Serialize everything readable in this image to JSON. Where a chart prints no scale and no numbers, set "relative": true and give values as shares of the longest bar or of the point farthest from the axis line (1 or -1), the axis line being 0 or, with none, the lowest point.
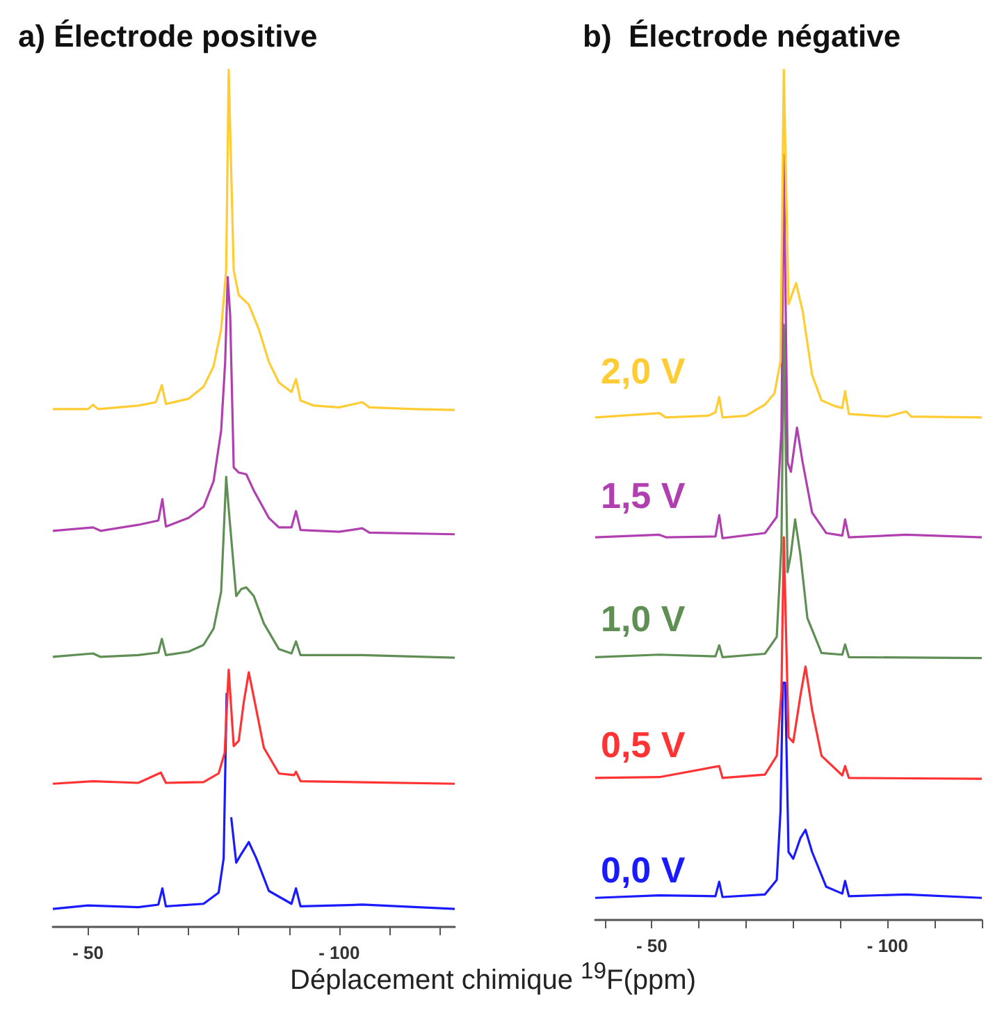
{
  "chart_data": [
    {
      "type": "line",
      "title": "a) Électrode positive",
      "xlabel": "Déplacement chimique $^{19}$F(ppm)",
      "relative": true,
      "tick_labels": "x",
      "xlim": [
        -43,
        -123
      ],
      "xticks": [
        {
          "value": -50,
          "label": "- 50"
        },
        {
          "value": -60,
          "label": null
        },
        {
          "value": -70,
          "label": null
        },
        {
          "value": -80,
          "label": null
        },
        {
          "value": -90,
          "label": null
        },
        {
          "value": -100,
          "label": "- 100"
        },
        {
          "value": -110,
          "label": null
        },
        {
          "value": -120,
          "label": null
        }
      ],
      "series": [
        {
          "name": "2,0 V",
          "color": "#ffcc33",
          "x": [
            -43,
            -50,
            -51,
            -52,
            -60,
            -63.5,
            -64.7,
            -65.5,
            -70,
            -73,
            -75,
            -76.5,
            -77.5,
            -78,
            -79,
            -80,
            -82,
            -84,
            -86,
            -88,
            -90.5,
            -91.4,
            -92.3,
            -95,
            -100,
            -104.6,
            -106,
            -115,
            -123
          ],
          "values": [
            0.604,
            0.604,
            0.609,
            0.604,
            0.608,
            0.612,
            0.632,
            0.61,
            0.616,
            0.63,
            0.654,
            0.697,
            0.766,
            1,
            0.766,
            0.737,
            0.726,
            0.697,
            0.659,
            0.635,
            0.624,
            0.639,
            0.614,
            0.608,
            0.606,
            0.612,
            0.606,
            0.604,
            0.603
          ]
        },
        {
          "name": "1,5 V",
          "color": "#b040b0",
          "x": [
            -43,
            -51,
            -52.5,
            -60,
            -64,
            -64.8,
            -65.5,
            -70,
            -73,
            -75,
            -76.5,
            -77.3,
            -77.8,
            -78.3,
            -79,
            -80,
            -81.5,
            -83,
            -86,
            -88,
            -90.5,
            -91.4,
            -92.3,
            -100,
            -104.6,
            -106,
            -123
          ],
          "values": [
            0.462,
            0.466,
            0.462,
            0.469,
            0.474,
            0.499,
            0.467,
            0.477,
            0.49,
            0.52,
            0.579,
            0.659,
            0.758,
            0.713,
            0.536,
            0.53,
            0.528,
            0.509,
            0.477,
            0.466,
            0.466,
            0.485,
            0.463,
            0.461,
            0.465,
            0.46,
            0.458
          ]
        },
        {
          "name": "1,0 V",
          "color": "#5f8f55",
          "x": [
            -43,
            -51,
            -52.5,
            -60,
            -64,
            -64.7,
            -65.5,
            -70,
            -73,
            -75,
            -76.5,
            -77.5,
            -78,
            -79.5,
            -80.5,
            -81.5,
            -83,
            -85,
            -88,
            -90.5,
            -91.4,
            -92.3,
            -104.6,
            -123
          ],
          "values": [
            0.315,
            0.319,
            0.315,
            0.317,
            0.32,
            0.336,
            0.317,
            0.321,
            0.329,
            0.348,
            0.391,
            0.525,
            0.488,
            0.386,
            0.394,
            0.396,
            0.386,
            0.354,
            0.324,
            0.319,
            0.333,
            0.317,
            0.317,
            0.314
          ]
        },
        {
          "name": "0,5 V",
          "color": "#ff3333",
          "x": [
            -43,
            -51,
            -60,
            -64.5,
            -65.5,
            -73,
            -76,
            -77.2,
            -78,
            -79,
            -80,
            -81,
            -82,
            -83,
            -85,
            -88,
            -91,
            -91.4,
            -92.3,
            -123
          ],
          "values": [
            0.167,
            0.17,
            0.168,
            0.18,
            0.168,
            0.169,
            0.179,
            0.203,
            0.3,
            0.211,
            0.217,
            0.262,
            0.297,
            0.268,
            0.209,
            0.179,
            0.177,
            0.181,
            0.17,
            0.167
          ]
        },
        {
          "name": "0,0 V",
          "color": "#1a1aff",
          "x": [
            -43,
            -50,
            -60,
            -64,
            -64.8,
            -65.5,
            -73,
            -76,
            -77,
            -77.6,
            -78,
            -78.5,
            -79.5,
            -80.5,
            -82,
            -83.5,
            -86,
            -90.5,
            -91.4,
            -92.3,
            -104.6,
            -123
          ],
          "values": [
            0.021,
            0.025,
            0.023,
            0.026,
            0.045,
            0.024,
            0.027,
            0.04,
            0.08,
            0.273,
            null,
            0.128,
            0.075,
            0.085,
            0.099,
            0.08,
            0.042,
            0.027,
            0.045,
            0.024,
            0.026,
            0.021
          ]
        }
      ]
    },
    {
      "type": "line",
      "title": "b)  Électrode négative",
      "relative": true,
      "tick_labels": "x",
      "xlim": [
        -38,
        -120
      ],
      "xticks": [
        {
          "value": -40,
          "label": null
        },
        {
          "value": -50,
          "label": "- 50"
        },
        {
          "value": -60,
          "label": null
        },
        {
          "value": -70,
          "label": null
        },
        {
          "value": -80,
          "label": null
        },
        {
          "value": -90,
          "label": null
        },
        {
          "value": -100,
          "label": "- 100"
        },
        {
          "value": -110,
          "label": null
        },
        {
          "value": -120,
          "label": null
        }
      ],
      "series": [
        {
          "color": "#ffcc33",
          "x": [
            -38,
            -51.6,
            -53,
            -62,
            -63.5,
            -64.3,
            -65,
            -70,
            -74,
            -76,
            -77.3,
            -78,
            -79,
            -80.6,
            -82,
            -84,
            -86,
            -89,
            -90.4,
            -91,
            -91.8,
            -100,
            -104,
            -105,
            -120
          ],
          "values": [
            0.591,
            0.596,
            0.591,
            0.593,
            0.597,
            0.615,
            0.591,
            0.593,
            0.606,
            0.619,
            0.657,
            1,
            0.724,
            0.749,
            0.716,
            0.641,
            0.611,
            0.604,
            0.602,
            0.622,
            0.595,
            0.592,
            0.598,
            0.592,
            0.591
          ]
        },
        {
          "color": "#b040b0",
          "x": [
            -38,
            -51.6,
            -53,
            -63.5,
            -64.3,
            -65,
            -74,
            -76.5,
            -77.5,
            -78,
            -78.8,
            -79.5,
            -80.8,
            -82,
            -84,
            -87,
            -90.4,
            -91,
            -91.8,
            -104,
            -120
          ],
          "values": [
            0.45,
            0.453,
            0.45,
            0.451,
            0.476,
            0.449,
            0.455,
            0.474,
            0.576,
            0.9,
            0.538,
            0.527,
            0.579,
            0.538,
            0.479,
            0.455,
            0.452,
            0.471,
            0.45,
            0.453,
            0.45
          ]
        },
        {
          "color": "#5f8f55",
          "x": [
            -38,
            -51.6,
            -63.5,
            -64.3,
            -65,
            -74,
            -76.5,
            -77.5,
            -78,
            -78.8,
            -79.5,
            -80.4,
            -81.5,
            -83,
            -86,
            -90.4,
            -91,
            -91.8,
            -120
          ],
          "values": [
            0.309,
            0.312,
            0.31,
            0.323,
            0.309,
            0.313,
            0.333,
            0.441,
            0.7,
            0.409,
            0.43,
            0.471,
            0.43,
            0.355,
            0.314,
            0.312,
            0.324,
            0.309,
            0.308
          ]
        },
        {
          "color": "#ff3333",
          "x": [
            -38,
            -51.6,
            -64.3,
            -65,
            -74,
            -76.5,
            -77.5,
            -78,
            -79,
            -80,
            -81.5,
            -82.6,
            -84,
            -86,
            -90.4,
            -91,
            -91.8,
            -120
          ],
          "values": [
            0.167,
            0.168,
            0.181,
            0.167,
            0.171,
            0.193,
            0.269,
            0.45,
            0.215,
            0.209,
            0.263,
            0.298,
            0.247,
            0.193,
            0.17,
            0.181,
            0.167,
            0.166
          ]
        },
        {
          "color": "#1a1aff",
          "x": [
            -38,
            -51.6,
            -63.5,
            -64.3,
            -65,
            -74,
            -76.5,
            -77.3,
            -77.8,
            -78.3,
            -79,
            -80,
            -81.5,
            -82.6,
            -84,
            -87,
            -90.4,
            -91,
            -91.8,
            -104,
            -120
          ],
          "values": [
            0.026,
            0.029,
            0.028,
            0.045,
            0.027,
            0.03,
            0.047,
            0.128,
            0.279,
            0.279,
            0.08,
            0.072,
            0.096,
            0.106,
            0.08,
            0.039,
            0.031,
            0.046,
            0.028,
            0.03,
            0.026
          ]
        }
      ]
    }
  ]
}
